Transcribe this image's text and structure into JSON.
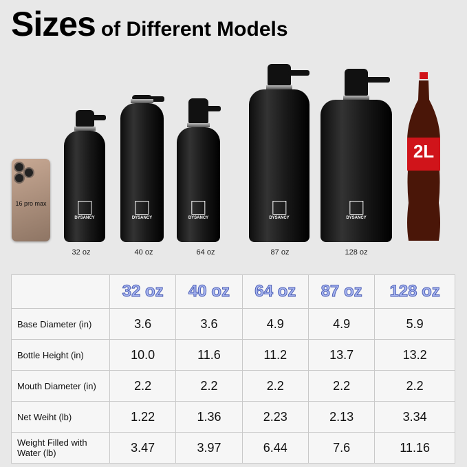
{
  "title": {
    "main": "Sizes",
    "sub": "of Different Models"
  },
  "phone": {
    "label": "16 pro max"
  },
  "brand": "DYSANCY",
  "coke": {
    "label": "2L"
  },
  "models": [
    "32 oz",
    "40 oz",
    "64 oz",
    "87 oz",
    "128 oz"
  ],
  "table": {
    "rows": [
      {
        "label": "Base Diameter (in)",
        "values": [
          "3.6",
          "3.6",
          "4.9",
          "4.9",
          "5.9"
        ]
      },
      {
        "label": "Bottle Height (in)",
        "values": [
          "10.0",
          "11.6",
          "11.2",
          "13.7",
          "13.2"
        ]
      },
      {
        "label": "Mouth Diameter (in)",
        "values": [
          "2.2",
          "2.2",
          "2.2",
          "2.2",
          "2.2"
        ]
      },
      {
        "label": "Net Weiht (lb)",
        "values": [
          "1.22",
          "1.36",
          "2.23",
          "2.13",
          "3.34"
        ]
      },
      {
        "label": "Weight Filled with Water (lb)",
        "values": [
          "3.47",
          "3.97",
          "6.44",
          "7.6",
          "11.16"
        ]
      }
    ]
  },
  "colors": {
    "header_text": "#a7b5f0",
    "header_outline": "#4d5fb5",
    "coke_red": "#d0141a"
  }
}
